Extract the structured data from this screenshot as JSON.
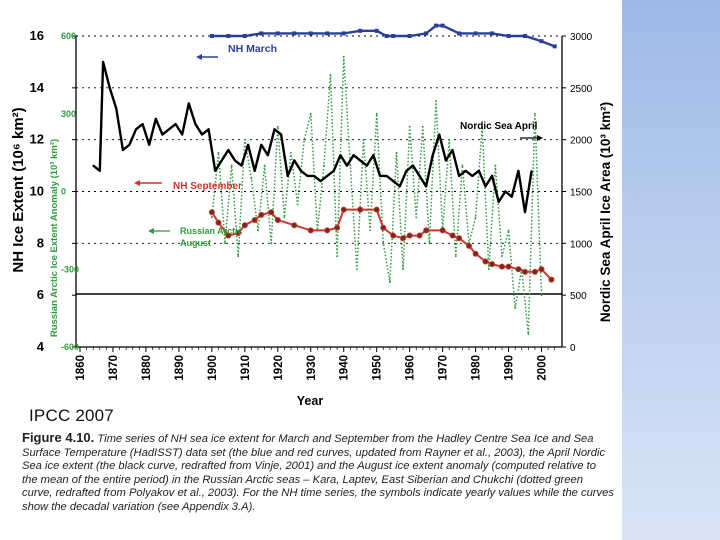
{
  "slide": {
    "watermark": "IPCC 2007"
  },
  "caption": {
    "label": "Figure 4.10.",
    "text": "Time series of NH sea ice extent for March and September from the Hadley Centre Sea Ice and Sea Surface Temperature (HadISST) data set (the blue and red curves, updated from Rayner et al., 2003), the April Nordic Sea ice extent (the black curve, redrafted from Vinje, 2001) and the August ice extent anomaly (computed relative to the mean of the entire period) in the Russian Arctic seas – Kara, Laptev, East Siberian and Chukchi (dotted green curve, redrafted from Polyakov et al., 2003). For the NH time series, the symbols indicate yearly values while the curves show the decadal variation (see Appendix 3.A)."
  },
  "colors": {
    "march": "#2a3f9a",
    "september": "#c8382f",
    "september_marker": "#7a2a1c",
    "nordic": "#000000",
    "russian": "#2e9b3c",
    "accent": "#b9cdef"
  },
  "chart_data": {
    "type": "line",
    "xlabel": "Year",
    "xlim": [
      1860,
      2005
    ],
    "xticks": [
      "1860",
      "1870",
      "1880",
      "1890",
      "1900",
      "1910",
      "1920",
      "1930",
      "1940",
      "1950",
      "1960",
      "1970",
      "1980",
      "1990",
      "2000"
    ],
    "ylabel_left": "NH Ice Extent (10⁶ km²)",
    "ylim_left": [
      4,
      16
    ],
    "yticks_left": [
      "4",
      "6",
      "8",
      "10",
      "12",
      "14",
      "16"
    ],
    "ylabel_inner": "Russian Arctic Ice Extent Anomaly (10³ km²)",
    "ylim_inner": [
      -600,
      600
    ],
    "yticks_inner": [
      "-600",
      "-300",
      "0",
      "300",
      "600"
    ],
    "ylabel_right": "Nordic Sea April Ice Area (10³ km²)",
    "ylim_right": [
      0,
      3000
    ],
    "yticks_right": [
      "0",
      "500",
      "1000",
      "1500",
      "2000",
      "2500",
      "3000"
    ],
    "annotations": {
      "march": "NH March",
      "september": "NH September",
      "nordic": "Nordic Sea April",
      "russian_line1": "Russian Arctic",
      "russian_line2": "August"
    },
    "series": [
      {
        "name": "NH March",
        "axis": "left",
        "x": [
          1900,
          1905,
          1910,
          1915,
          1920,
          1925,
          1930,
          1935,
          1940,
          1945,
          1950,
          1953,
          1955,
          1960,
          1965,
          1968,
          1970,
          1975,
          1980,
          1985,
          1990,
          1995,
          2000,
          2004
        ],
        "values": [
          16.0,
          16.0,
          16.0,
          16.1,
          16.1,
          16.1,
          16.1,
          16.1,
          16.1,
          16.2,
          16.2,
          16.0,
          16.0,
          16.0,
          16.1,
          16.4,
          16.4,
          16.1,
          16.1,
          16.1,
          16.0,
          16.0,
          15.8,
          15.6
        ]
      },
      {
        "name": "NH September",
        "axis": "left",
        "x": [
          1900,
          1902,
          1905,
          1908,
          1910,
          1913,
          1915,
          1918,
          1920,
          1925,
          1930,
          1935,
          1938,
          1940,
          1945,
          1950,
          1952,
          1955,
          1958,
          1960,
          1963,
          1965,
          1970,
          1973,
          1975,
          1978,
          1980,
          1983,
          1985,
          1988,
          1990,
          1993,
          1995,
          1998,
          2000,
          2003
        ],
        "values": [
          9.2,
          8.8,
          8.3,
          8.4,
          8.7,
          8.9,
          9.1,
          9.2,
          8.9,
          8.7,
          8.5,
          8.5,
          8.6,
          9.3,
          9.3,
          9.3,
          8.6,
          8.3,
          8.2,
          8.3,
          8.3,
          8.5,
          8.5,
          8.3,
          8.2,
          7.9,
          7.6,
          7.3,
          7.2,
          7.1,
          7.1,
          7.0,
          6.9,
          6.9,
          7.0,
          6.6
        ]
      },
      {
        "name": "Nordic Sea April",
        "axis": "right",
        "x": [
          1864,
          1866,
          1867,
          1869,
          1871,
          1873,
          1875,
          1877,
          1879,
          1881,
          1883,
          1885,
          1887,
          1889,
          1891,
          1893,
          1895,
          1897,
          1899,
          1901,
          1903,
          1905,
          1907,
          1909,
          1911,
          1913,
          1915,
          1917,
          1919,
          1921,
          1923,
          1925,
          1927,
          1929,
          1931,
          1933,
          1935,
          1937,
          1939,
          1941,
          1943,
          1945,
          1947,
          1949,
          1951,
          1953,
          1955,
          1957,
          1959,
          1961,
          1963,
          1965,
          1967,
          1969,
          1971,
          1973,
          1975,
          1977,
          1979,
          1981,
          1983,
          1985,
          1987,
          1989,
          1991,
          1993,
          1995,
          1997
        ],
        "values": [
          1750,
          1700,
          2750,
          2500,
          2300,
          1900,
          1950,
          2100,
          2150,
          1950,
          2200,
          2050,
          2100,
          2150,
          2050,
          2350,
          2150,
          2050,
          2100,
          1700,
          1800,
          1900,
          1800,
          1750,
          1950,
          1700,
          1950,
          1850,
          2100,
          2050,
          1650,
          1800,
          1700,
          1650,
          1650,
          1600,
          1650,
          1700,
          1850,
          1750,
          1850,
          1800,
          1750,
          1850,
          1650,
          1650,
          1600,
          1550,
          1700,
          1750,
          1650,
          1550,
          1850,
          2050,
          1800,
          1900,
          1650,
          1700,
          1650,
          1700,
          1550,
          1650,
          1400,
          1500,
          1450,
          1700,
          1300,
          1700
        ]
      },
      {
        "name": "Russian Arctic August",
        "axis": "inner",
        "x": [
          1900,
          1902,
          1904,
          1906,
          1908,
          1910,
          1912,
          1914,
          1916,
          1918,
          1920,
          1922,
          1924,
          1926,
          1928,
          1930,
          1932,
          1934,
          1936,
          1938,
          1940,
          1942,
          1944,
          1946,
          1948,
          1950,
          1952,
          1954,
          1956,
          1958,
          1960,
          1962,
          1964,
          1966,
          1968,
          1970,
          1972,
          1974,
          1976,
          1978,
          1980,
          1982,
          1984,
          1986,
          1988,
          1990,
          1992,
          1994,
          1996,
          1998,
          2000
        ],
        "values": [
          -100,
          150,
          -200,
          100,
          -250,
          200,
          50,
          -150,
          100,
          -200,
          250,
          -100,
          150,
          -50,
          200,
          300,
          -150,
          100,
          450,
          -250,
          520,
          100,
          -300,
          200,
          -150,
          300,
          -200,
          -350,
          150,
          -300,
          250,
          -100,
          250,
          -200,
          350,
          -150,
          200,
          -250,
          100,
          -200,
          -100,
          250,
          -300,
          100,
          -250,
          -150,
          -450,
          -300,
          -550,
          300,
          -400
        ]
      }
    ]
  }
}
